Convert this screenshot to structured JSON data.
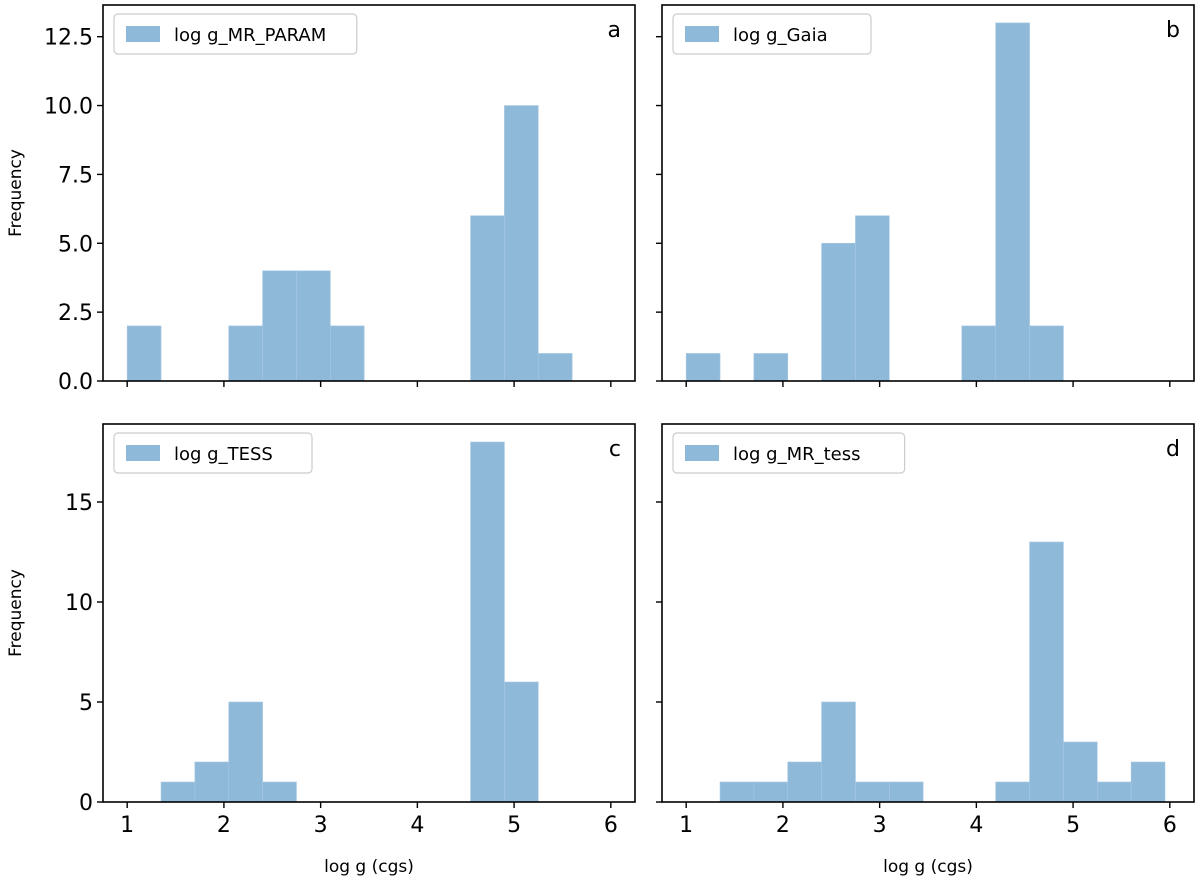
{
  "chart_data": [
    {
      "type": "bar",
      "panel_label": "a",
      "series": [
        {
          "name": "log g_MR_PARAM",
          "bins": [
            {
              "x0": 1.0,
              "x1": 1.35,
              "count": 2
            },
            {
              "x0": 2.05,
              "x1": 2.4,
              "count": 2
            },
            {
              "x0": 2.4,
              "x1": 2.75,
              "count": 4
            },
            {
              "x0": 2.75,
              "x1": 3.1,
              "count": 4
            },
            {
              "x0": 3.1,
              "x1": 3.45,
              "count": 2
            },
            {
              "x0": 4.55,
              "x1": 4.9,
              "count": 6
            },
            {
              "x0": 4.9,
              "x1": 5.25,
              "count": 10
            },
            {
              "x0": 5.25,
              "x1": 5.6,
              "count": 1
            }
          ]
        }
      ],
      "xlim": [
        0.75,
        6.25
      ],
      "ylim": [
        0,
        13.65
      ],
      "xticks": [
        1,
        2,
        3,
        4,
        5,
        6
      ],
      "yticks": [
        0,
        2.5,
        5,
        7.5,
        10,
        12.5
      ],
      "ytick_labels": [
        "0.0",
        "2.5",
        "5.0",
        "7.5",
        "10.0",
        "12.5"
      ],
      "xlabel": "",
      "ylabel": "Frequency",
      "legend": "top-left",
      "color": "#8fb9d9"
    },
    {
      "type": "bar",
      "panel_label": "b",
      "series": [
        {
          "name": "log g_Gaia",
          "bins": [
            {
              "x0": 1.0,
              "x1": 1.35,
              "count": 1
            },
            {
              "x0": 1.7,
              "x1": 2.05,
              "count": 1
            },
            {
              "x0": 2.4,
              "x1": 2.75,
              "count": 5
            },
            {
              "x0": 2.75,
              "x1": 3.1,
              "count": 6
            },
            {
              "x0": 3.85,
              "x1": 4.2,
              "count": 2
            },
            {
              "x0": 4.2,
              "x1": 4.55,
              "count": 13
            },
            {
              "x0": 4.55,
              "x1": 4.9,
              "count": 2
            }
          ]
        }
      ],
      "xlim": [
        0.75,
        6.25
      ],
      "ylim": [
        0,
        13.65
      ],
      "xticks": [
        1,
        2,
        3,
        4,
        5,
        6
      ],
      "yticks": [
        0,
        2.5,
        5,
        7.5,
        10,
        12.5
      ],
      "xlabel": "",
      "ylabel": "",
      "legend": "top-left",
      "color": "#8fb9d9"
    },
    {
      "type": "bar",
      "panel_label": "c",
      "series": [
        {
          "name": "log g_TESS",
          "bins": [
            {
              "x0": 1.35,
              "x1": 1.7,
              "count": 1
            },
            {
              "x0": 1.7,
              "x1": 2.05,
              "count": 2
            },
            {
              "x0": 2.05,
              "x1": 2.4,
              "count": 5
            },
            {
              "x0": 2.4,
              "x1": 2.75,
              "count": 1
            },
            {
              "x0": 4.55,
              "x1": 4.9,
              "count": 18
            },
            {
              "x0": 4.9,
              "x1": 5.25,
              "count": 6
            }
          ]
        }
      ],
      "xlim": [
        0.75,
        6.25
      ],
      "ylim": [
        0,
        18.9
      ],
      "xticks": [
        1,
        2,
        3,
        4,
        5,
        6
      ],
      "yticks": [
        0,
        5,
        10,
        15
      ],
      "xlabel": "log g (cgs)",
      "ylabel": "Frequency",
      "legend": "top-left",
      "color": "#8fb9d9"
    },
    {
      "type": "bar",
      "panel_label": "d",
      "series": [
        {
          "name": "log g_MR_tess",
          "bins": [
            {
              "x0": 1.35,
              "x1": 1.7,
              "count": 1
            },
            {
              "x0": 1.7,
              "x1": 2.05,
              "count": 1
            },
            {
              "x0": 2.05,
              "x1": 2.4,
              "count": 2
            },
            {
              "x0": 2.4,
              "x1": 2.75,
              "count": 5
            },
            {
              "x0": 2.75,
              "x1": 3.1,
              "count": 1
            },
            {
              "x0": 3.1,
              "x1": 3.45,
              "count": 1
            },
            {
              "x0": 4.2,
              "x1": 4.55,
              "count": 1
            },
            {
              "x0": 4.55,
              "x1": 4.9,
              "count": 13
            },
            {
              "x0": 4.9,
              "x1": 5.25,
              "count": 3
            },
            {
              "x0": 5.25,
              "x1": 5.6,
              "count": 1
            },
            {
              "x0": 5.6,
              "x1": 5.95,
              "count": 2
            }
          ]
        }
      ],
      "xlim": [
        0.75,
        6.25
      ],
      "ylim": [
        0,
        18.9
      ],
      "xticks": [
        1,
        2,
        3,
        4,
        5,
        6
      ],
      "yticks": [
        0,
        5,
        10,
        15
      ],
      "xlabel": "log g (cgs)",
      "ylabel": "",
      "legend": "top-left",
      "color": "#8fb9d9"
    }
  ]
}
